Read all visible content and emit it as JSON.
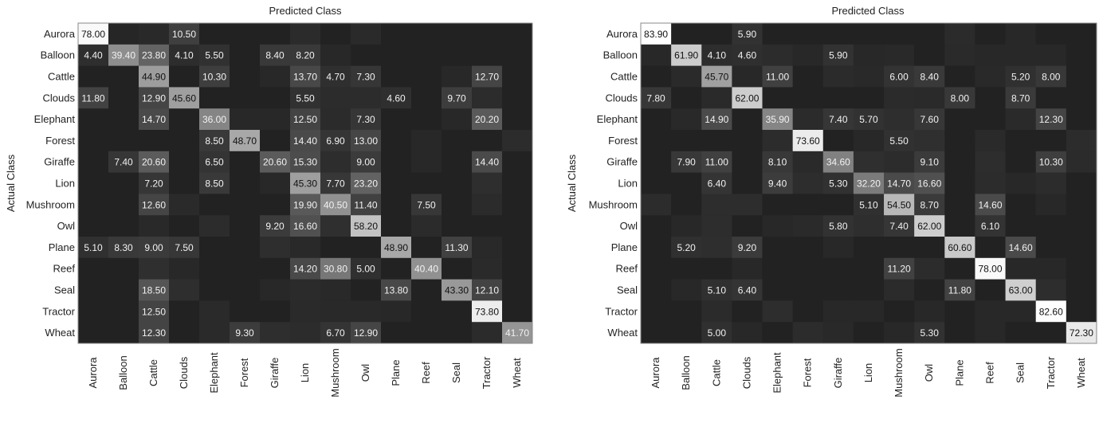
{
  "chart_data": [
    {
      "type": "heatmap",
      "title": "Predicted Class",
      "xlabel": "Predicted Class",
      "ylabel": "Actual Class",
      "classes": [
        "Aurora",
        "Balloon",
        "Cattle",
        "Clouds",
        "Elephant",
        "Forest",
        "Giraffe",
        "Lion",
        "Mushroom",
        "Owl",
        "Plane",
        "Reef",
        "Seal",
        "Tractor",
        "Wheat"
      ],
      "values": [
        [
          78.0,
          1.5,
          2.5,
          10.5,
          0,
          0,
          0,
          3.2,
          0,
          2.8,
          0,
          0,
          0,
          0,
          0
        ],
        [
          4.4,
          39.4,
          23.8,
          4.1,
          5.5,
          0,
          8.4,
          8.2,
          2.0,
          0,
          0,
          0,
          0,
          0,
          0
        ],
        [
          0,
          0,
          44.9,
          0,
          10.3,
          0,
          2.0,
          13.7,
          4.7,
          7.3,
          0,
          0,
          2.0,
          12.7,
          0
        ],
        [
          11.8,
          0,
          12.9,
          45.6,
          0,
          0,
          0,
          5.5,
          3.5,
          3.6,
          4.6,
          0,
          9.7,
          3.5,
          0
        ],
        [
          0,
          0,
          14.7,
          0,
          36.0,
          2.0,
          2.0,
          12.5,
          3.3,
          7.3,
          0,
          0,
          2.0,
          20.2,
          0
        ],
        [
          0,
          0,
          0,
          0,
          8.5,
          48.7,
          0,
          14.4,
          6.9,
          13.0,
          0,
          2.0,
          0,
          0,
          3.7
        ],
        [
          0,
          7.4,
          20.6,
          0,
          6.5,
          0,
          20.6,
          15.3,
          4.0,
          9.0,
          0,
          2.0,
          0,
          14.4,
          0
        ],
        [
          0,
          0,
          7.2,
          0,
          8.5,
          0,
          2.0,
          45.3,
          7.7,
          23.2,
          0,
          0,
          0,
          4.4,
          0
        ],
        [
          0,
          0,
          12.6,
          3.0,
          0,
          0,
          0,
          19.9,
          40.5,
          11.4,
          0,
          7.5,
          0,
          3.3,
          0
        ],
        [
          0,
          0,
          2.5,
          0,
          3.6,
          0,
          9.2,
          16.6,
          4.8,
          58.2,
          0,
          3.1,
          0,
          0,
          0
        ],
        [
          5.1,
          8.3,
          9.0,
          7.5,
          0,
          0,
          4.5,
          2.5,
          0,
          0,
          48.9,
          0,
          11.3,
          2.5,
          0
        ],
        [
          0,
          0,
          4.6,
          2.0,
          0,
          0,
          0,
          14.2,
          30.8,
          5.0,
          0,
          40.4,
          0,
          2.8,
          0
        ],
        [
          0,
          0,
          18.5,
          4.2,
          0,
          0,
          2.0,
          3.1,
          2.5,
          0,
          13.8,
          0,
          43.3,
          12.1,
          0
        ],
        [
          0,
          0,
          12.5,
          0,
          2.9,
          0,
          0,
          2.8,
          2.5,
          2.5,
          2.0,
          0,
          0,
          73.8,
          0
        ],
        [
          0,
          0,
          12.3,
          0,
          3.0,
          9.3,
          4.5,
          3.6,
          6.7,
          12.9,
          0,
          0,
          0,
          3.1,
          41.7
        ]
      ],
      "shown_labels": [
        [
          1,
          0,
          0,
          1,
          0,
          0,
          0,
          0,
          0,
          0,
          0,
          0,
          0,
          0,
          0
        ],
        [
          1,
          1,
          1,
          1,
          1,
          0,
          1,
          1,
          0,
          0,
          0,
          0,
          0,
          0,
          0
        ],
        [
          0,
          0,
          1,
          0,
          1,
          0,
          0,
          1,
          1,
          1,
          0,
          0,
          0,
          1,
          0
        ],
        [
          1,
          0,
          1,
          1,
          0,
          0,
          0,
          1,
          0,
          0,
          1,
          0,
          1,
          0,
          0
        ],
        [
          0,
          0,
          1,
          0,
          1,
          0,
          0,
          1,
          0,
          1,
          0,
          0,
          0,
          1,
          0
        ],
        [
          0,
          0,
          0,
          0,
          1,
          1,
          0,
          1,
          1,
          1,
          0,
          0,
          0,
          0,
          0
        ],
        [
          0,
          1,
          1,
          0,
          1,
          0,
          1,
          1,
          0,
          1,
          0,
          0,
          0,
          1,
          0
        ],
        [
          0,
          0,
          1,
          0,
          1,
          0,
          0,
          1,
          1,
          1,
          0,
          0,
          0,
          0,
          0
        ],
        [
          0,
          0,
          1,
          0,
          0,
          0,
          0,
          1,
          1,
          1,
          0,
          1,
          0,
          0,
          0
        ],
        [
          0,
          0,
          0,
          0,
          0,
          0,
          1,
          1,
          0,
          1,
          0,
          0,
          0,
          0,
          0
        ],
        [
          1,
          1,
          1,
          1,
          0,
          0,
          0,
          0,
          0,
          0,
          1,
          0,
          1,
          0,
          0
        ],
        [
          0,
          0,
          0,
          0,
          0,
          0,
          0,
          1,
          1,
          1,
          0,
          1,
          0,
          0,
          0
        ],
        [
          0,
          0,
          1,
          0,
          0,
          0,
          0,
          0,
          0,
          0,
          1,
          0,
          1,
          1,
          0
        ],
        [
          0,
          0,
          1,
          0,
          0,
          0,
          0,
          0,
          0,
          0,
          0,
          0,
          0,
          1,
          0
        ],
        [
          0,
          0,
          1,
          0,
          0,
          1,
          0,
          0,
          1,
          1,
          0,
          0,
          0,
          0,
          1
        ]
      ],
      "grid": false,
      "colormap": "gray"
    },
    {
      "type": "heatmap",
      "title": "Predicted Class",
      "xlabel": "Predicted Class",
      "ylabel": "Actual Class",
      "classes": [
        "Aurora",
        "Balloon",
        "Cattle",
        "Clouds",
        "Elephant",
        "Forest",
        "Giraffe",
        "Lion",
        "Mushroom",
        "Owl",
        "Plane",
        "Reef",
        "Seal",
        "Tractor",
        "Wheat"
      ],
      "values": [
        [
          83.9,
          0,
          0,
          5.9,
          0,
          0,
          0,
          0,
          0,
          0,
          3.2,
          0,
          2.0,
          0,
          0
        ],
        [
          2.0,
          61.9,
          4.1,
          4.6,
          3.5,
          2.0,
          5.9,
          2.0,
          2.5,
          0,
          2.9,
          2.0,
          2.0,
          2.0,
          0
        ],
        [
          0,
          2.9,
          45.7,
          2.0,
          11.0,
          0,
          3.4,
          2.7,
          6.0,
          8.4,
          0,
          2.7,
          5.2,
          8.0,
          0
        ],
        [
          7.8,
          0,
          3.0,
          62.0,
          0,
          0,
          0,
          0,
          3.4,
          2.8,
          8.0,
          0,
          8.7,
          0,
          0
        ],
        [
          0,
          2.5,
          14.9,
          0,
          35.9,
          3.4,
          7.4,
          5.7,
          4.4,
          7.6,
          0,
          0,
          3.0,
          12.3,
          0
        ],
        [
          0,
          0,
          0,
          0,
          3.6,
          73.6,
          0,
          2.0,
          5.5,
          4.7,
          0,
          2.9,
          0,
          0,
          3.7
        ],
        [
          0,
          7.9,
          11.0,
          0,
          8.1,
          2.8,
          34.6,
          4.6,
          3.8,
          9.1,
          0,
          4.0,
          0,
          10.3,
          3.3
        ],
        [
          0,
          0,
          6.4,
          0,
          9.4,
          4.0,
          5.3,
          32.2,
          14.7,
          16.6,
          0,
          3.6,
          2.0,
          3.5,
          0
        ],
        [
          3.8,
          0,
          4.1,
          4.0,
          0,
          0,
          0,
          5.1,
          54.5,
          8.7,
          0,
          14.6,
          0,
          2.0,
          0
        ],
        [
          0,
          2.0,
          3.9,
          0,
          2.0,
          3.0,
          5.8,
          4.4,
          7.4,
          62.0,
          0,
          6.1,
          0,
          0,
          0
        ],
        [
          0,
          5.2,
          4.3,
          9.2,
          0,
          0,
          2.0,
          0,
          0,
          0,
          60.6,
          0,
          14.6,
          0,
          0
        ],
        [
          0,
          0,
          0,
          2.0,
          0,
          0,
          0,
          0,
          11.2,
          3.8,
          0,
          78.0,
          2.0,
          2.0,
          0
        ],
        [
          0,
          2.0,
          5.1,
          6.4,
          0,
          0,
          0,
          0,
          3.4,
          0,
          11.8,
          0,
          63.0,
          3.9,
          0
        ],
        [
          0,
          0,
          3.4,
          0,
          4.0,
          0,
          2.0,
          2.0,
          0,
          2.0,
          0,
          2.0,
          2.0,
          82.6,
          0
        ],
        [
          0,
          0,
          5.0,
          2.0,
          0,
          3.6,
          2.5,
          0,
          2.0,
          5.3,
          0,
          2.0,
          0,
          0,
          72.3
        ]
      ],
      "shown_labels": [
        [
          1,
          0,
          0,
          1,
          0,
          0,
          0,
          0,
          0,
          0,
          0,
          0,
          0,
          0,
          0
        ],
        [
          0,
          1,
          1,
          1,
          0,
          0,
          1,
          0,
          0,
          0,
          0,
          0,
          0,
          0,
          0
        ],
        [
          0,
          0,
          1,
          0,
          1,
          0,
          0,
          0,
          1,
          1,
          0,
          0,
          1,
          1,
          0
        ],
        [
          1,
          0,
          0,
          1,
          0,
          0,
          0,
          0,
          0,
          0,
          1,
          0,
          1,
          0,
          0
        ],
        [
          0,
          0,
          1,
          0,
          1,
          0,
          1,
          1,
          0,
          1,
          0,
          0,
          0,
          1,
          0
        ],
        [
          0,
          0,
          0,
          0,
          0,
          1,
          0,
          0,
          1,
          0,
          0,
          0,
          0,
          0,
          0
        ],
        [
          0,
          1,
          1,
          0,
          1,
          0,
          1,
          0,
          0,
          1,
          0,
          0,
          0,
          1,
          0
        ],
        [
          0,
          0,
          1,
          0,
          1,
          0,
          1,
          1,
          1,
          1,
          0,
          0,
          0,
          0,
          0
        ],
        [
          0,
          0,
          0,
          0,
          0,
          0,
          0,
          1,
          1,
          1,
          0,
          1,
          0,
          0,
          0
        ],
        [
          0,
          0,
          0,
          0,
          0,
          0,
          1,
          0,
          1,
          1,
          0,
          1,
          0,
          0,
          0
        ],
        [
          0,
          1,
          0,
          1,
          0,
          0,
          0,
          0,
          0,
          0,
          1,
          0,
          1,
          0,
          0
        ],
        [
          0,
          0,
          0,
          0,
          0,
          0,
          0,
          0,
          1,
          0,
          0,
          1,
          0,
          0,
          0
        ],
        [
          0,
          0,
          1,
          1,
          0,
          0,
          0,
          0,
          0,
          0,
          1,
          0,
          1,
          0,
          0
        ],
        [
          0,
          0,
          0,
          0,
          0,
          0,
          0,
          0,
          0,
          0,
          0,
          0,
          0,
          1,
          0
        ],
        [
          0,
          0,
          1,
          0,
          0,
          0,
          0,
          0,
          0,
          1,
          0,
          0,
          0,
          0,
          1
        ]
      ],
      "grid": false,
      "colormap": "gray"
    }
  ]
}
